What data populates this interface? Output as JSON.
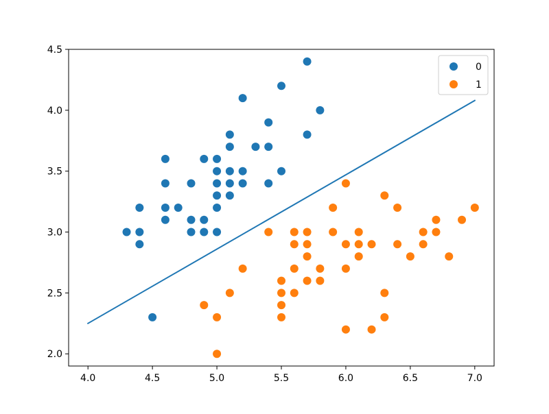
{
  "chart_data": {
    "type": "scatter",
    "title": "",
    "xlabel": "",
    "ylabel": "",
    "xlim": [
      3.85,
      7.15
    ],
    "ylim": [
      1.9,
      4.5
    ],
    "grid": false,
    "legend_placement": "top-right",
    "x_ticks": [
      {
        "value": 4.0,
        "label": "4.0"
      },
      {
        "value": 4.5,
        "label": "4.5"
      },
      {
        "value": 5.0,
        "label": "5.0"
      },
      {
        "value": 5.5,
        "label": "5.5"
      },
      {
        "value": 6.0,
        "label": "6.0"
      },
      {
        "value": 6.5,
        "label": "6.5"
      },
      {
        "value": 7.0,
        "label": "7.0"
      }
    ],
    "y_ticks": [
      {
        "value": 2.0,
        "label": "2.0"
      },
      {
        "value": 2.5,
        "label": "2.5"
      },
      {
        "value": 3.0,
        "label": "3.0"
      },
      {
        "value": 3.5,
        "label": "3.5"
      },
      {
        "value": 4.0,
        "label": "4.0"
      },
      {
        "value": 4.5,
        "label": "4.5"
      }
    ],
    "series": [
      {
        "name": "0",
        "color": "#1f77b4",
        "points": [
          [
            5.7,
            4.4
          ],
          [
            5.5,
            4.2
          ],
          [
            5.2,
            4.1
          ],
          [
            5.8,
            4.0
          ],
          [
            5.4,
            3.9
          ],
          [
            5.1,
            3.8
          ],
          [
            5.7,
            3.8
          ],
          [
            5.1,
            3.7
          ],
          [
            5.3,
            3.7
          ],
          [
            5.4,
            3.7
          ],
          [
            4.6,
            3.6
          ],
          [
            4.9,
            3.6
          ],
          [
            5.0,
            3.6
          ],
          [
            5.0,
            3.5
          ],
          [
            5.1,
            3.5
          ],
          [
            5.2,
            3.5
          ],
          [
            5.5,
            3.5
          ],
          [
            4.6,
            3.4
          ],
          [
            4.8,
            3.4
          ],
          [
            5.0,
            3.4
          ],
          [
            5.1,
            3.4
          ],
          [
            5.2,
            3.4
          ],
          [
            5.4,
            3.4
          ],
          [
            5.0,
            3.3
          ],
          [
            5.1,
            3.3
          ],
          [
            4.4,
            3.2
          ],
          [
            4.6,
            3.2
          ],
          [
            4.7,
            3.2
          ],
          [
            5.0,
            3.2
          ],
          [
            4.6,
            3.1
          ],
          [
            4.8,
            3.1
          ],
          [
            4.9,
            3.1
          ],
          [
            4.3,
            3.0
          ],
          [
            4.4,
            3.0
          ],
          [
            4.8,
            3.0
          ],
          [
            4.9,
            3.0
          ],
          [
            5.0,
            3.0
          ],
          [
            4.4,
            2.9
          ],
          [
            4.5,
            2.3
          ]
        ]
      },
      {
        "name": "1",
        "color": "#ff7f0e",
        "points": [
          [
            6.0,
            3.4
          ],
          [
            6.3,
            3.3
          ],
          [
            5.9,
            3.2
          ],
          [
            6.4,
            3.2
          ],
          [
            7.0,
            3.2
          ],
          [
            6.7,
            3.1
          ],
          [
            6.9,
            3.1
          ],
          [
            5.4,
            3.0
          ],
          [
            5.6,
            3.0
          ],
          [
            5.7,
            3.0
          ],
          [
            5.9,
            3.0
          ],
          [
            6.1,
            3.0
          ],
          [
            6.6,
            3.0
          ],
          [
            6.7,
            3.0
          ],
          [
            5.6,
            2.9
          ],
          [
            5.7,
            2.9
          ],
          [
            6.0,
            2.9
          ],
          [
            6.1,
            2.9
          ],
          [
            6.2,
            2.9
          ],
          [
            6.4,
            2.9
          ],
          [
            6.6,
            2.9
          ],
          [
            5.7,
            2.8
          ],
          [
            6.1,
            2.8
          ],
          [
            6.5,
            2.8
          ],
          [
            6.8,
            2.8
          ],
          [
            5.2,
            2.7
          ],
          [
            5.6,
            2.7
          ],
          [
            5.8,
            2.7
          ],
          [
            6.0,
            2.7
          ],
          [
            5.5,
            2.6
          ],
          [
            5.7,
            2.6
          ],
          [
            5.8,
            2.6
          ],
          [
            5.1,
            2.5
          ],
          [
            5.5,
            2.5
          ],
          [
            5.6,
            2.5
          ],
          [
            6.3,
            2.5
          ],
          [
            4.9,
            2.4
          ],
          [
            5.5,
            2.4
          ],
          [
            5.0,
            2.3
          ],
          [
            5.5,
            2.3
          ],
          [
            6.3,
            2.3
          ],
          [
            6.0,
            2.2
          ],
          [
            6.2,
            2.2
          ],
          [
            5.0,
            2.0
          ]
        ]
      }
    ],
    "line": {
      "color": "#1f77b4",
      "points": [
        [
          4.0,
          2.25
        ],
        [
          7.0,
          4.08
        ]
      ]
    }
  }
}
